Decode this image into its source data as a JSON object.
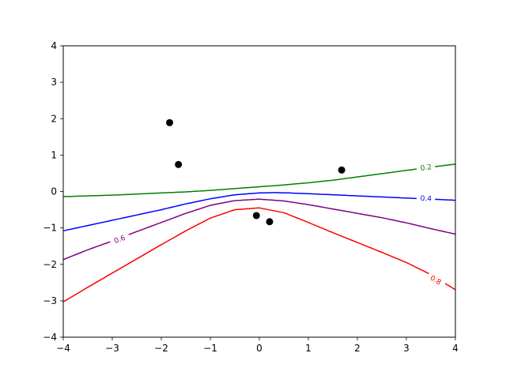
{
  "chart_data": {
    "type": "contour",
    "title": "",
    "xlabel": "",
    "ylabel": "",
    "xlim": [
      -4,
      4
    ],
    "ylim": [
      -4,
      4
    ],
    "xticks": [
      -4,
      -3,
      -2,
      -1,
      0,
      1,
      2,
      3,
      4
    ],
    "yticks": [
      -4,
      -3,
      -2,
      -1,
      0,
      1,
      2,
      3,
      4
    ],
    "xtick_labels": [
      "−4",
      "−3",
      "−2",
      "−1",
      "0",
      "1",
      "2",
      "3",
      "4"
    ],
    "ytick_labels": [
      "−4",
      "−3",
      "−2",
      "−1",
      "0",
      "1",
      "2",
      "3",
      "4"
    ],
    "grid": false,
    "scatter_points": {
      "color": "#000000",
      "points": [
        {
          "x": -1.83,
          "y": 1.89
        },
        {
          "x": -1.65,
          "y": 0.74
        },
        {
          "x": -0.06,
          "y": -0.66
        },
        {
          "x": 0.21,
          "y": -0.83
        },
        {
          "x": 1.68,
          "y": 0.59
        }
      ]
    },
    "contours": [
      {
        "level": "0.2",
        "color": "#008000",
        "label_at": {
          "x": 3.4,
          "y": 0.66
        },
        "points": [
          [
            -4,
            -0.14
          ],
          [
            -3,
            -0.1
          ],
          [
            -2,
            -0.04
          ],
          [
            -1.5,
            -0.01
          ],
          [
            -1,
            0.03
          ],
          [
            -0.5,
            0.08
          ],
          [
            0,
            0.13
          ],
          [
            0.5,
            0.18
          ],
          [
            1,
            0.24
          ],
          [
            1.5,
            0.31
          ],
          [
            2,
            0.4
          ],
          [
            2.5,
            0.49
          ],
          [
            3,
            0.58
          ],
          [
            3.5,
            0.67
          ],
          [
            4,
            0.75
          ]
        ]
      },
      {
        "level": "0.4",
        "color": "#0000ff",
        "label_at": {
          "x": 3.4,
          "y": -0.19
        },
        "points": [
          [
            -4,
            -1.08
          ],
          [
            -3,
            -0.79
          ],
          [
            -2,
            -0.5
          ],
          [
            -1.5,
            -0.34
          ],
          [
            -1,
            -0.2
          ],
          [
            -0.5,
            -0.09
          ],
          [
            0,
            -0.04
          ],
          [
            0.3,
            -0.03
          ],
          [
            0.6,
            -0.04
          ],
          [
            1,
            -0.06
          ],
          [
            1.5,
            -0.09
          ],
          [
            2,
            -0.12
          ],
          [
            2.5,
            -0.15
          ],
          [
            3,
            -0.18
          ],
          [
            3.5,
            -0.21
          ],
          [
            4,
            -0.24
          ]
        ]
      },
      {
        "level": "0.6",
        "color": "#800080",
        "label_at": {
          "x": -2.85,
          "y": -1.31
        },
        "points": [
          [
            -4,
            -1.87
          ],
          [
            -3.5,
            -1.6
          ],
          [
            -3,
            -1.36
          ],
          [
            -2.5,
            -1.1
          ],
          [
            -2,
            -0.85
          ],
          [
            -1.5,
            -0.6
          ],
          [
            -1,
            -0.38
          ],
          [
            -0.5,
            -0.25
          ],
          [
            0,
            -0.21
          ],
          [
            0.5,
            -0.26
          ],
          [
            1,
            -0.36
          ],
          [
            1.5,
            -0.48
          ],
          [
            2,
            -0.6
          ],
          [
            2.5,
            -0.72
          ],
          [
            3,
            -0.86
          ],
          [
            3.5,
            -1.02
          ],
          [
            4,
            -1.17
          ]
        ]
      },
      {
        "level": "0.8",
        "color": "#ff0000",
        "label_at": {
          "x": 3.6,
          "y": -2.43
        },
        "points": [
          [
            -4,
            -3.03
          ],
          [
            -3.5,
            -2.63
          ],
          [
            -3,
            -2.24
          ],
          [
            -2.5,
            -1.85
          ],
          [
            -2,
            -1.46
          ],
          [
            -1.5,
            -1.08
          ],
          [
            -1,
            -0.73
          ],
          [
            -0.5,
            -0.5
          ],
          [
            0,
            -0.45
          ],
          [
            0.5,
            -0.58
          ],
          [
            1,
            -0.85
          ],
          [
            1.5,
            -1.13
          ],
          [
            2,
            -1.4
          ],
          [
            2.5,
            -1.67
          ],
          [
            3,
            -1.95
          ],
          [
            3.5,
            -2.28
          ],
          [
            4,
            -2.7
          ]
        ]
      }
    ]
  }
}
